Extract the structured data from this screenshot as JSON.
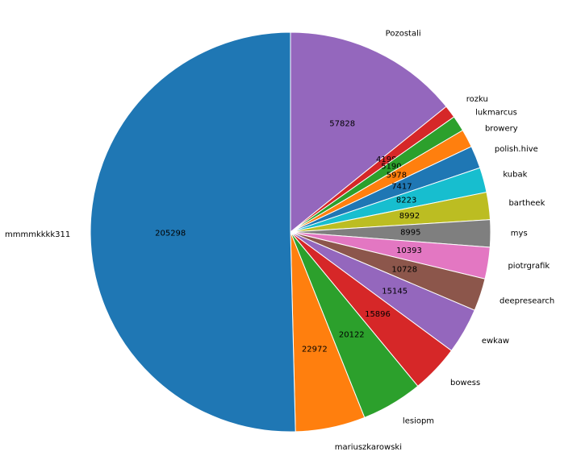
{
  "chart_data": {
    "type": "pie",
    "title": "",
    "start_angle_deg": 90,
    "direction": "clockwise",
    "slices": [
      {
        "label": "Pozostali",
        "value": 57828,
        "color": "#9467bd"
      },
      {
        "label": "rozku",
        "value": 4198,
        "color": "#d62728"
      },
      {
        "label": "lukmarcus",
        "value": 5190,
        "color": "#2ca02c"
      },
      {
        "label": "browery",
        "value": 5978,
        "color": "#ff7f0e"
      },
      {
        "label": "polish.hive",
        "value": 7417,
        "color": "#1f77b4"
      },
      {
        "label": "kubak",
        "value": 8223,
        "color": "#17becf"
      },
      {
        "label": "bartheek",
        "value": 8992,
        "color": "#bcbd22"
      },
      {
        "label": "mys",
        "value": 8995,
        "color": "#7f7f7f"
      },
      {
        "label": "piotrgrafik",
        "value": 10393,
        "color": "#e377c2"
      },
      {
        "label": "deepresearch",
        "value": 10728,
        "color": "#8c564b"
      },
      {
        "label": "ewkaw",
        "value": 15145,
        "color": "#9467bd"
      },
      {
        "label": "bowess",
        "value": 15896,
        "color": "#d62728"
      },
      {
        "label": "lesiopm",
        "value": 20122,
        "color": "#2ca02c"
      },
      {
        "label": "mariuszkarowski",
        "value": 22972,
        "color": "#ff7f0e"
      },
      {
        "label": "mmmmkkkk311",
        "value": 205298,
        "color": "#1f77b4"
      }
    ]
  }
}
